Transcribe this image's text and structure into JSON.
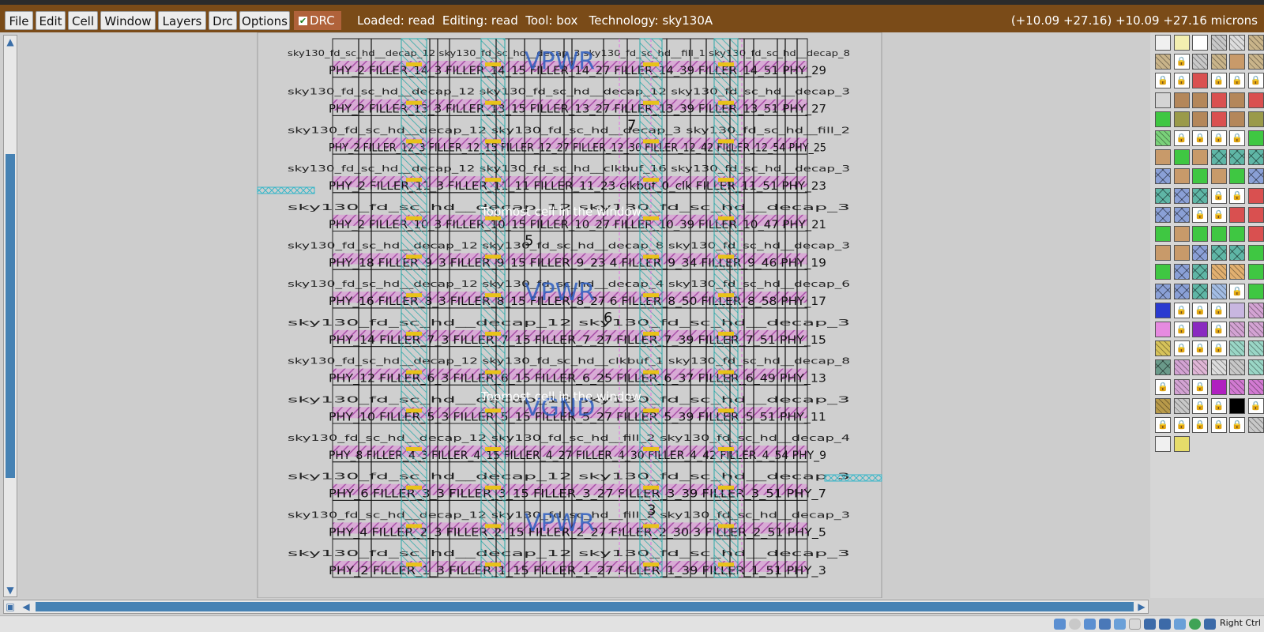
{
  "menu": [
    "File",
    "Edit",
    "Cell",
    "Window",
    "Layers",
    "Drc",
    "Options"
  ],
  "drc_label": "DRC",
  "status": "Loaded: read  Editing: read  Tool: box   Technology: sky130A",
  "coords": "(+10.09 +27.16) +10.09 +27.16 microns",
  "layout": {
    "rows": [
      {
        "top": "sky130_fd_sc_hd__decap_12  sky130_fd_sc_hd__decap_3  sky130_fd_sc_hd__fill_1  sky130_fd_sc_hd__decap_8",
        "bottom": "PHY_2  FILLER_14_3  FILLER_14_15  FILLER_14_27  FILLER_14_39  FILLER_14_51  PHY_29"
      },
      {
        "top": "sky130_fd_sc_hd__decap_12  sky130_fd_sc_hd__decap_12  sky130_fd_sc_hd__decap_3",
        "bottom": "PHY_2  FILLER_13_3  FILLER_13_15  FILLER_13_27  FILLER_13_39  FILLER_13_51  PHY_27"
      },
      {
        "top": "sky130_fd_sc_hd__decap_12  sky130_fd_sc_hd__decap_3  sky130_fd_sc_hd__fill_2",
        "bottom": "PHY_2  FILLER_12_3  FILLER_12_15  FILLER_12_27  FILLER_12_30  FILLER_12_42  FILLER_12_54  PHY_25"
      },
      {
        "top": "sky130_fd_sc_hd__decap_12  sky130_fd_sc_hd__clkbuf_16  sky130_fd_sc_hd__decap_3",
        "bottom": "PHY_2  FILLER_11_3  FILLER_11_11  FILLER_11_23  clkbuf_0_clk  FILLER_11_51  PHY_23"
      },
      {
        "top": "sky130_fd_sc_hd__decap_12  sky130_fd_sc_hd__decap_3",
        "bottom": "PHY_2  FILLER_10_3  FILLER_10_15  FILLER_10_27  FILLER_10_39  FILLER_10_47  PHY_21"
      },
      {
        "top": "sky130_fd_sc_hd__decap_12  sky130_fd_sc_hd__decap_8  sky130_fd_sc_hd__decap_3",
        "bottom": "PHY_18  FILLER_9_3  FILLER_9_15  FILLER_9_23  4  FILLER_9_34  FILLER_9_46  PHY_19"
      },
      {
        "top": "sky130_fd_sc_hd__decap_12  sky130_fd_sc_hd__decap_4  sky130_fd_sc_hd__decap_6",
        "bottom": "PHY_16  FILLER_8_3  FILLER_8_15  FILLER_8_27  6  FILLER_8_50  FILLER_8_58  PHY_17"
      },
      {
        "top": "sky130_fd_sc_hd__decap_12  sky130_fd_sc_hd__decap_3",
        "bottom": "PHY_14  FILLER_7_3  FILLER_7_15  FILLER_7_27  FILLER_7_39  FILLER_7_51  PHY_15"
      },
      {
        "top": "sky130_fd_sc_hd__decap_12  sky130_fd_sc_hd__clkbuf_1  sky130_fd_sc_hd__decap_8",
        "bottom": "PHY_12  FILLER_6_3  FILLER_6_15  FILLER_6_25  FILLER_6_37  FILLER_6_49  PHY_13"
      },
      {
        "top": "sky130_fd_sc_hd__decap_12  sky130_fd_sc_hd__decap_3",
        "bottom": "PHY_10  FILLER_5_3  FILLER_5_15  FILLER_5_27  FILLER_5_39  FILLER_5_51  PHY_11"
      },
      {
        "top": "sky130_fd_sc_hd__decap_12  sky130_fd_sc_hd__fill_2  sky130_fd_sc_hd__decap_4",
        "bottom": "PHY_8  FILLER_4_3  FILLER_4_15  FILLER_4_27  FILLER_4_30  FILLER_4_42  FILLER_4_54  PHY_9"
      },
      {
        "top": "sky130_fd_sc_hd__decap_12  sky130_fd_sc_hd__decap_3",
        "bottom": "PHY_6  FILLER_3_3  FILLER_3_15  FILLER_3_27  FILLER_3_39  FILLER_3_51  PHY_7"
      },
      {
        "top": "sky130_fd_sc_hd__decap_12  sky130_fd_sc_hd__fill_2  sky130_fd_sc_hd__decap_3",
        "bottom": "PHY_4  FILLER_2_3  FILLER_2_15  FILLER_2_27  FILLER_2_30  3  FILLER_2_51  PHY_5"
      },
      {
        "top": "sky130_fd_sc_hd__decap_12  sky130_fd_sc_hd__decap_3",
        "bottom": "PHY_2  FILLER_1_3  FILLER_1_15  FILLER_1_27  FILLER_1_39  FILLER_1_51  PHY_3"
      }
    ],
    "big_labels": [
      {
        "text": "VPWR",
        "row": 1
      },
      {
        "text": "VPWR",
        "row": 7
      },
      {
        "text": "VGND",
        "row": 10
      },
      {
        "text": "VPWR",
        "row": 13
      }
    ],
    "overlay_texts": [
      "Topmost cell in the window",
      "Topmost cell in the window"
    ],
    "number_labels": [
      "7",
      "5",
      "6",
      "3"
    ]
  },
  "palette": {
    "columns": 6,
    "swatches": [
      "grid-white",
      "solid-lightyellow",
      "outline-black",
      "hatch-gray",
      "hatch-black",
      "hatch-tan",
      "hatch-tan",
      "lock",
      "hatch-gray",
      "hatch-tan",
      "solid-tan",
      "hatch-tan",
      "lock",
      "lock",
      "solid-red",
      "lock",
      "lock",
      "lock",
      "solid-lightgray",
      "solid-brown",
      "solid-brown",
      "solid-red",
      "solid-brown",
      "solid-red",
      "solid-green",
      "solid-olive",
      "solid-brown",
      "solid-red",
      "solid-brown",
      "solid-olive",
      "hatch-green",
      "lock",
      "lock",
      "lock",
      "lock",
      "solid-green",
      "solid-tan",
      "solid-green",
      "solid-tan",
      "cross-teal",
      "cross-teal",
      "cross-teal",
      "cross-blue",
      "solid-tan",
      "solid-green",
      "solid-tan",
      "solid-green",
      "cross-blue",
      "cross-teal",
      "cross-blue",
      "cross-teal",
      "lock",
      "lock",
      "solid-red",
      "cross-blue",
      "cross-blue",
      "lock",
      "lock",
      "solid-red",
      "solid-red",
      "solid-green",
      "solid-tan",
      "solid-green",
      "solid-green",
      "solid-green",
      "solid-red",
      "solid-tan",
      "solid-tan",
      "cross-blue",
      "cross-teal",
      "cross-teal",
      "solid-green",
      "solid-green",
      "cross-blue",
      "cross-teal",
      "hatch-orange",
      "hatch-orange",
      "solid-green",
      "cross-blue",
      "cross-blue",
      "cross-teal",
      "hatch-blue",
      "lock",
      "solid-green",
      "dots-blue",
      "lock",
      "lock",
      "lock",
      "solid-lavender",
      "hatch-purple",
      "solid-pink",
      "lock",
      "solid-purple",
      "lock",
      "hatch-purple",
      "hatch-purple",
      "hatch-gold",
      "lock",
      "lock",
      "lock",
      "hatch-teal",
      "hatch-teal",
      "cross-black",
      "hatch-purple",
      "hatch-pink",
      "hatch-black",
      "hatch-gray",
      "hatch-teal",
      "lock",
      "hatch-purple",
      "lock",
      "solid-magenta",
      "hatch-magenta",
      "hatch-magenta",
      "hatch-brown",
      "hatch-gray",
      "lock",
      "lock",
      "solid-black",
      "lock",
      "lock",
      "lock",
      "lock",
      "lock",
      "lock",
      "hatch-gray",
      "grid-white",
      "solid-yellow"
    ]
  },
  "taskbar_label": "Right Ctrl"
}
